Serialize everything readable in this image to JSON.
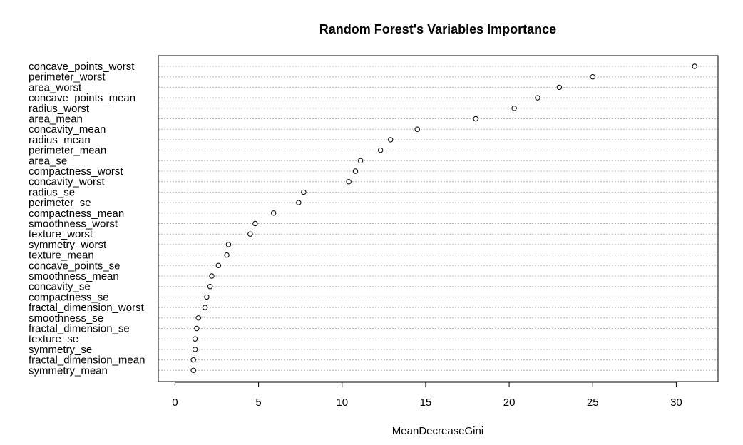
{
  "chart_data": {
    "type": "scatter",
    "title": "Random Forest's Variables Importance",
    "xlabel": "MeanDecreaseGini",
    "ylabel": "",
    "xlim": [
      -1,
      32.5
    ],
    "xticks": [
      0,
      5,
      10,
      15,
      20,
      25,
      30
    ],
    "grid": "horizontal dotted lines per variable",
    "categories": [
      "concave_points_worst",
      "perimeter_worst",
      "area_worst",
      "concave_points_mean",
      "radius_worst",
      "area_mean",
      "concavity_mean",
      "radius_mean",
      "perimeter_mean",
      "area_se",
      "compactness_worst",
      "concavity_worst",
      "radius_se",
      "perimeter_se",
      "compactness_mean",
      "smoothness_worst",
      "texture_worst",
      "symmetry_worst",
      "texture_mean",
      "concave_points_se",
      "smoothness_mean",
      "concavity_se",
      "compactness_se",
      "fractal_dimension_worst",
      "smoothness_se",
      "fractal_dimension_se",
      "texture_se",
      "symmetry_se",
      "fractal_dimension_mean",
      "symmetry_mean"
    ],
    "values": [
      31.1,
      25.0,
      23.0,
      21.7,
      20.3,
      18.0,
      14.5,
      12.9,
      12.3,
      11.1,
      10.8,
      10.4,
      7.7,
      7.4,
      5.9,
      4.8,
      4.5,
      3.2,
      3.1,
      2.6,
      2.2,
      2.1,
      1.9,
      1.8,
      1.4,
      1.3,
      1.2,
      1.2,
      1.1,
      1.1
    ]
  }
}
